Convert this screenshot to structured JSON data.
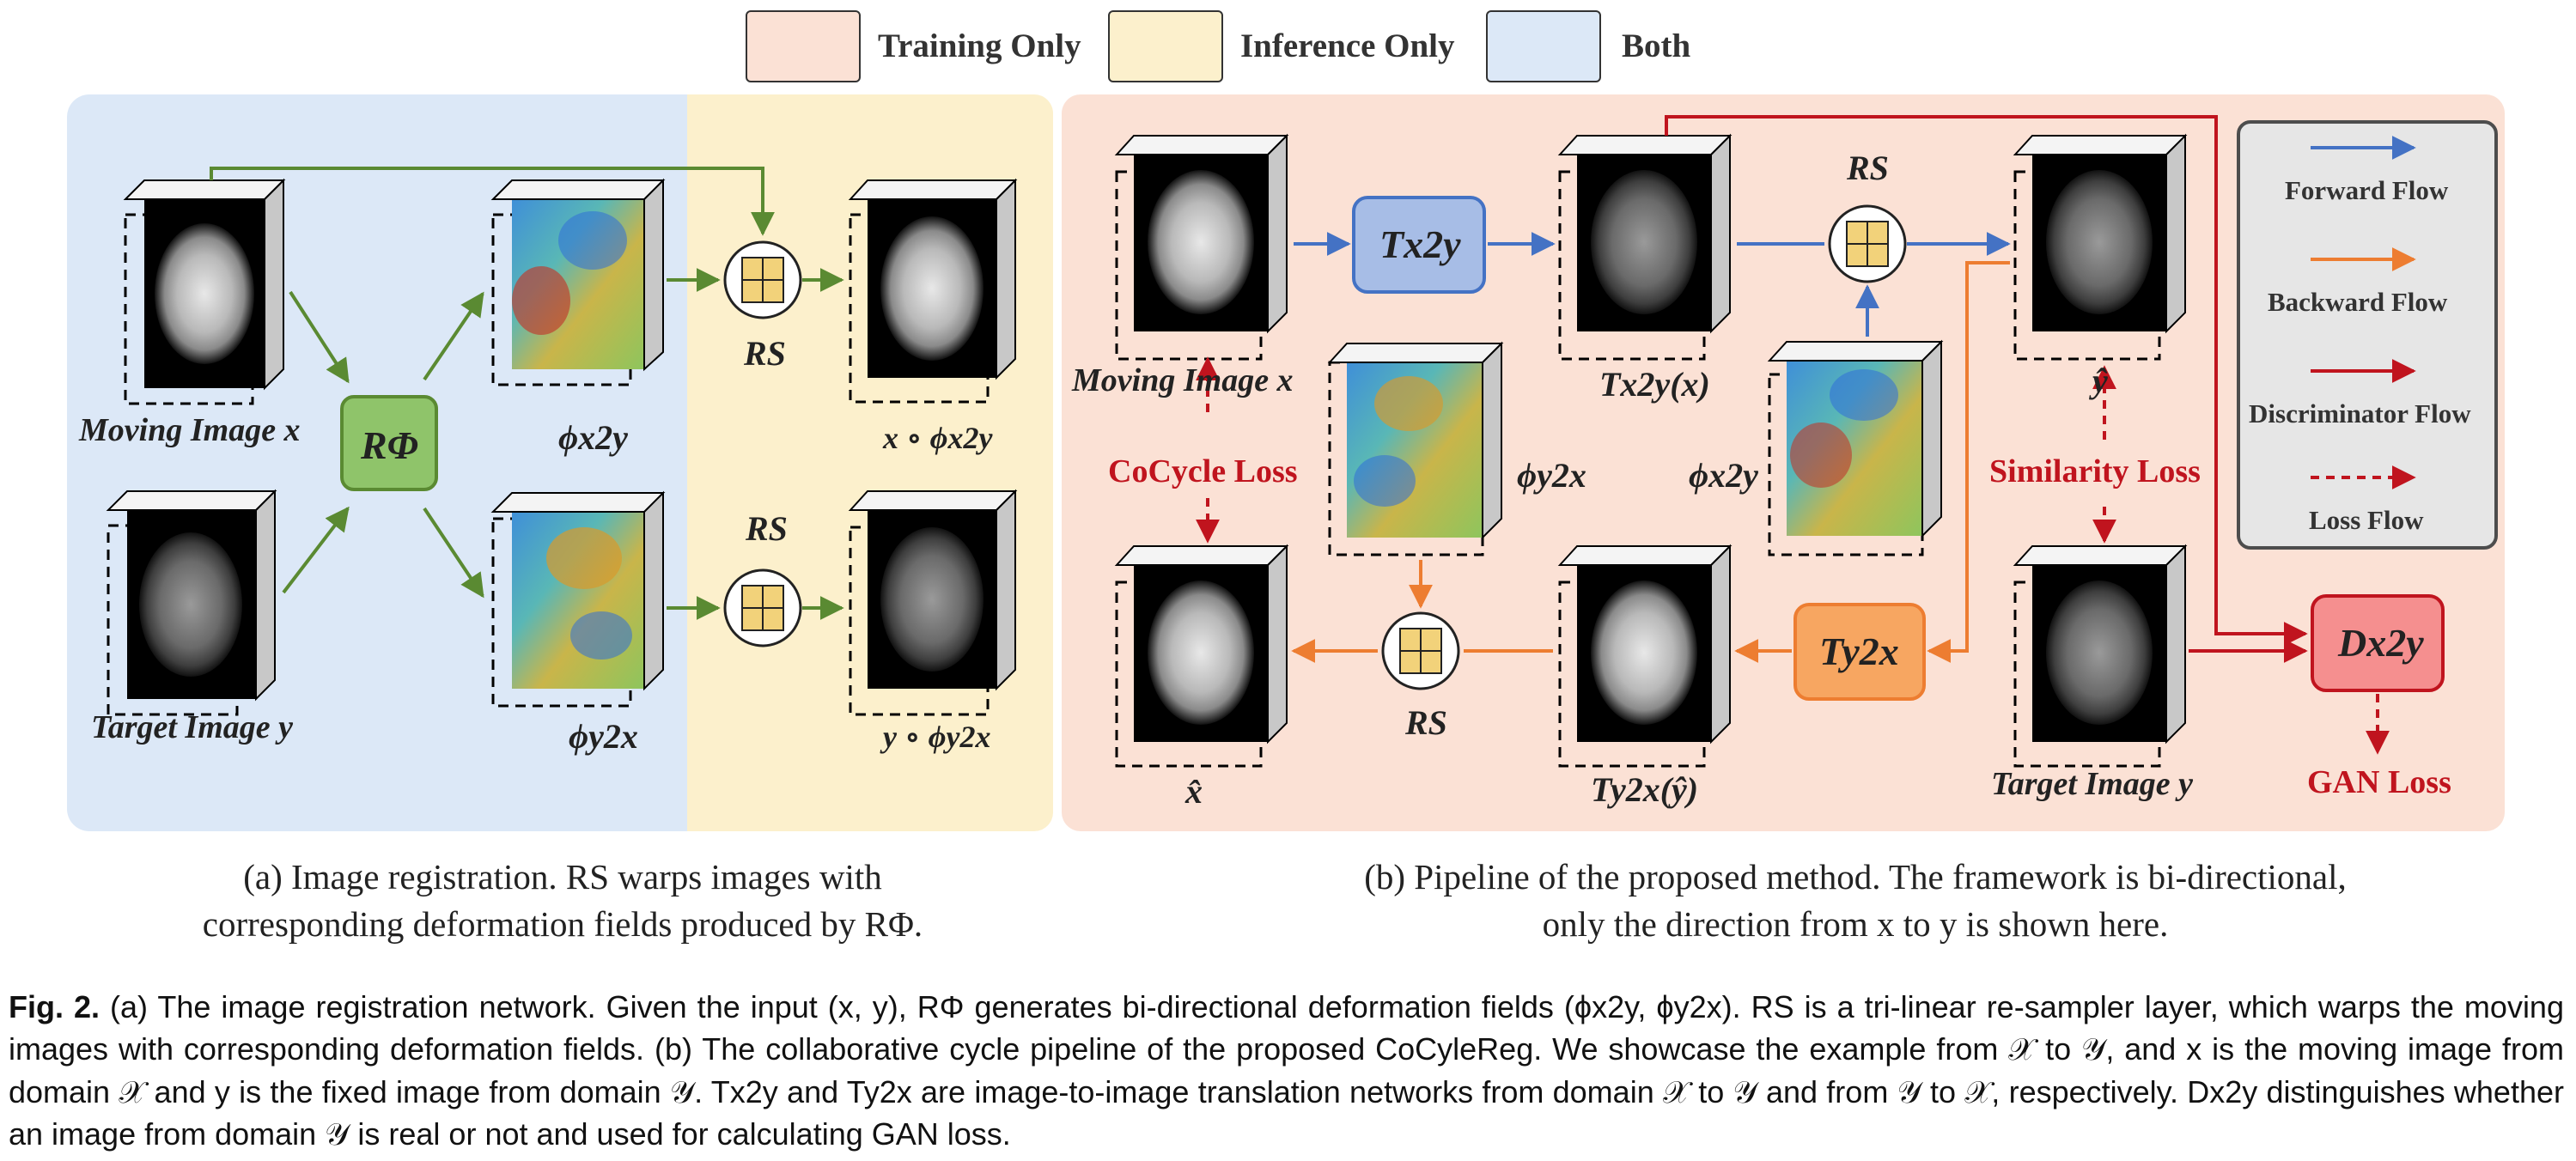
{
  "legend": {
    "training_only": "Training Only",
    "inference_only": "Inference Only",
    "both": "Both",
    "colors": {
      "training": "#fbe1d5",
      "inference": "#fcf0cc",
      "both": "#dce8f7"
    }
  },
  "panel_a": {
    "moving_image": "Moving Image x",
    "target_image": "Target Image y",
    "r_phi": "RΦ",
    "phi_x2y": "ϕx2y",
    "phi_y2x": "ϕy2x",
    "rs_top": "RS",
    "rs_bottom": "RS",
    "x_warp": "x ∘ ϕx2y",
    "y_warp": "y ∘ ϕy2x",
    "caption_line1": "(a) Image registration. RS warps images with",
    "caption_line2": "corresponding deformation fields produced by RΦ."
  },
  "panel_b": {
    "moving_image": "Moving Image x",
    "t_x2y": "Tx2y",
    "t_x2y_x": "Tx2y(x)",
    "rs_top": "RS",
    "y_hat": "ŷ",
    "cocycle_loss": "CoCycle Loss",
    "phi_y2x": "ϕy2x",
    "phi_x2y": "ϕx2y",
    "similarity_loss": "Similarity Loss",
    "x_hat": "x̂",
    "rs_bottom": "RS",
    "t_y2x_yhat": "Ty2x(ŷ)",
    "t_y2x": "Ty2x",
    "target_image": "Target Image y",
    "d_x2y": "Dx2y",
    "gan_loss": "GAN Loss",
    "caption_line1": "(b) Pipeline of  the proposed method. The framework is bi-directional,",
    "caption_line2": "only the direction from x to y is shown here."
  },
  "flow_legend": {
    "forward": "Forward Flow",
    "backward": "Backward Flow",
    "discriminator": "Discriminator Flow",
    "loss": "Loss Flow",
    "colors": {
      "forward": "#4472c4",
      "backward": "#ed7d31",
      "discriminator": "#c0141e",
      "loss": "#c0141e"
    }
  },
  "figure_caption": {
    "label": "Fig. 2.",
    "text": "(a) The image registration network. Given the input (x, y), RΦ generates bi-directional deformation fields (ϕx2y, ϕy2x). RS is a tri-linear re-sampler layer, which warps the moving images with corresponding deformation fields. (b) The collaborative cycle pipeline of the proposed CoCyleReg. We showcase the example from 𝒳 to 𝒴, and x is the moving image from domain 𝒳 and y is the fixed image from domain 𝒴. Tx2y and Ty2x are image-to-image translation networks from domain 𝒳 to 𝒴 and from 𝒴 to 𝒳, respectively. Dx2y distinguishes whether an image from domain 𝒴 is real or not and used for calculating GAN loss."
  }
}
